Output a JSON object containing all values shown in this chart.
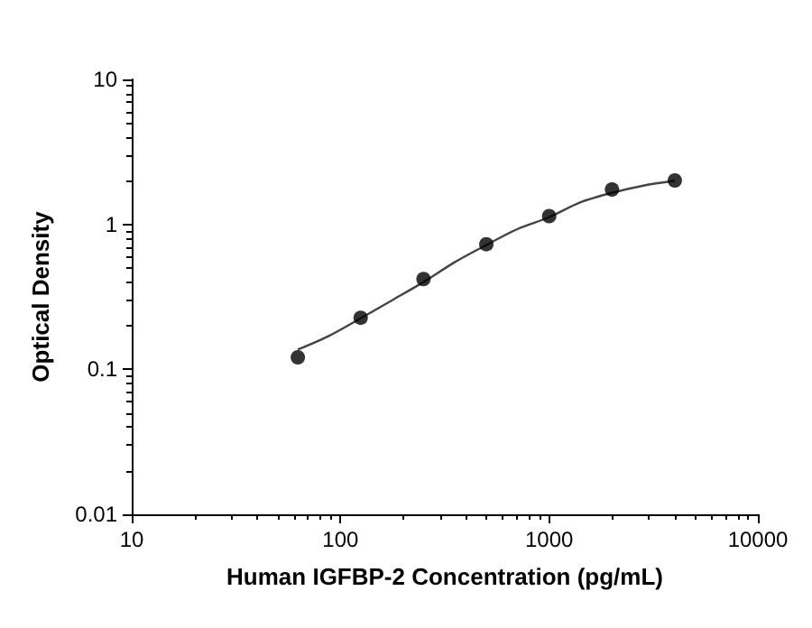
{
  "chart_data": {
    "type": "scatter",
    "xlabel": "Human IGFBP-2 Concentration (pg/mL)",
    "ylabel": "Optical Density",
    "log": "xy",
    "xlim": [
      10,
      10000
    ],
    "xticks": [
      10,
      100,
      1000,
      10000
    ],
    "ylim": [
      0.01,
      10
    ],
    "yticks": [
      0.01,
      0.1,
      1,
      10
    ],
    "grid": false,
    "series": [
      {
        "color": "#000000",
        "marker": "circle",
        "x": [
          62.5,
          125,
          250,
          500,
          1000,
          2000,
          4000
        ],
        "values": [
          0.121,
          0.227,
          0.42,
          0.73,
          1.14,
          1.74,
          2.01
        ]
      },
      {
        "type": "line",
        "color": "#444444",
        "marker": "none",
        "line_style": "solid",
        "x": [
          62.5,
          88,
          125,
          177,
          250,
          354,
          500,
          707,
          1000,
          1414,
          2000,
          2828,
          4000
        ],
        "values": [
          0.137,
          0.17,
          0.225,
          0.3,
          0.4,
          0.55,
          0.72,
          0.93,
          1.12,
          1.42,
          1.65,
          1.85,
          2.0
        ]
      }
    ]
  }
}
